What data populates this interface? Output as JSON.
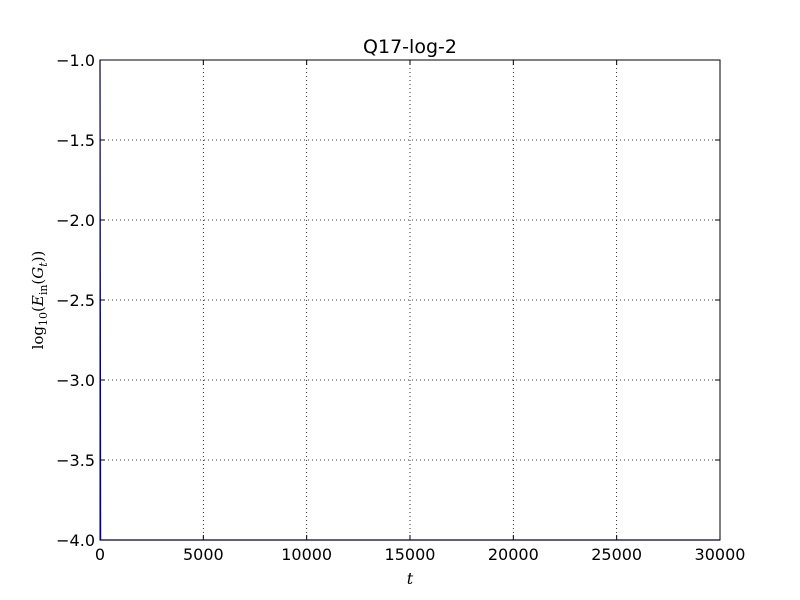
{
  "chart_data": {
    "type": "line",
    "title": "Q17-log-2",
    "xlabel": "t",
    "ylabel": "log10(E_in(G_t))",
    "xlim": [
      0,
      30000
    ],
    "ylim": [
      -4.0,
      -1.0
    ],
    "grid": true,
    "x_ticks": [
      0,
      5000,
      10000,
      15000,
      20000,
      25000,
      30000
    ],
    "x_tick_labels": [
      "0",
      "5000",
      "10000",
      "15000",
      "20000",
      "25000",
      "30000"
    ],
    "y_ticks": [
      -1.0,
      -1.5,
      -2.0,
      -2.5,
      -3.0,
      -3.5,
      -4.0
    ],
    "y_tick_labels": [
      "−1.0",
      "−1.5",
      "−2.0",
      "−2.5",
      "−3.0",
      "−3.5",
      "−4.0"
    ],
    "series": [
      {
        "name": "E_in",
        "color": "#0000ff",
        "x": [
          0,
          30,
          30000
        ],
        "y": [
          -1.0,
          -4.0,
          -4.0
        ]
      }
    ]
  }
}
